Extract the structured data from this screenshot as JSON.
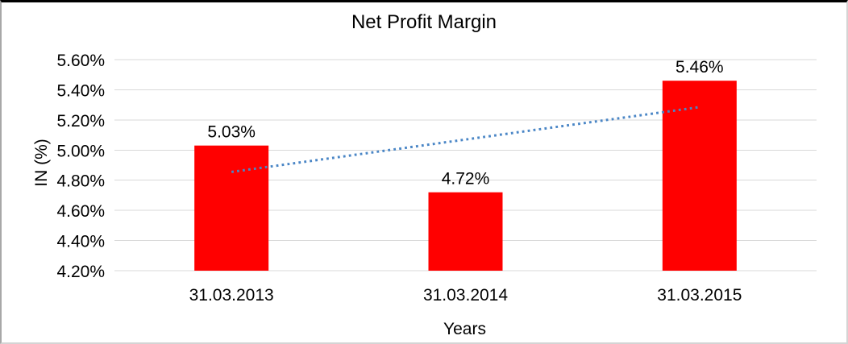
{
  "chart_data": {
    "type": "bar",
    "title": "Net Profit Margin",
    "xlabel": "Years",
    "ylabel": "IN (%)",
    "categories": [
      "31.03.2013",
      "31.03.2014",
      "31.03.2015"
    ],
    "values": [
      5.03,
      4.72,
      5.46
    ],
    "data_labels": [
      "5.03%",
      "4.72%",
      "5.46%"
    ],
    "ylim": [
      4.2,
      5.6
    ],
    "ytick_step": 0.2,
    "ytick_labels": [
      "4.20%",
      "4.40%",
      "4.60%",
      "4.80%",
      "5.00%",
      "5.20%",
      "5.40%",
      "5.60%"
    ],
    "grid": "horizontal",
    "legend": "none",
    "bar_color": "#FF0000",
    "gridline_color": "#D9D9D9",
    "text_color": "#000000",
    "trendline": {
      "type": "linear",
      "style": "dotted",
      "color": "#4A86C6",
      "start_value": 4.855,
      "end_value": 5.285
    }
  }
}
